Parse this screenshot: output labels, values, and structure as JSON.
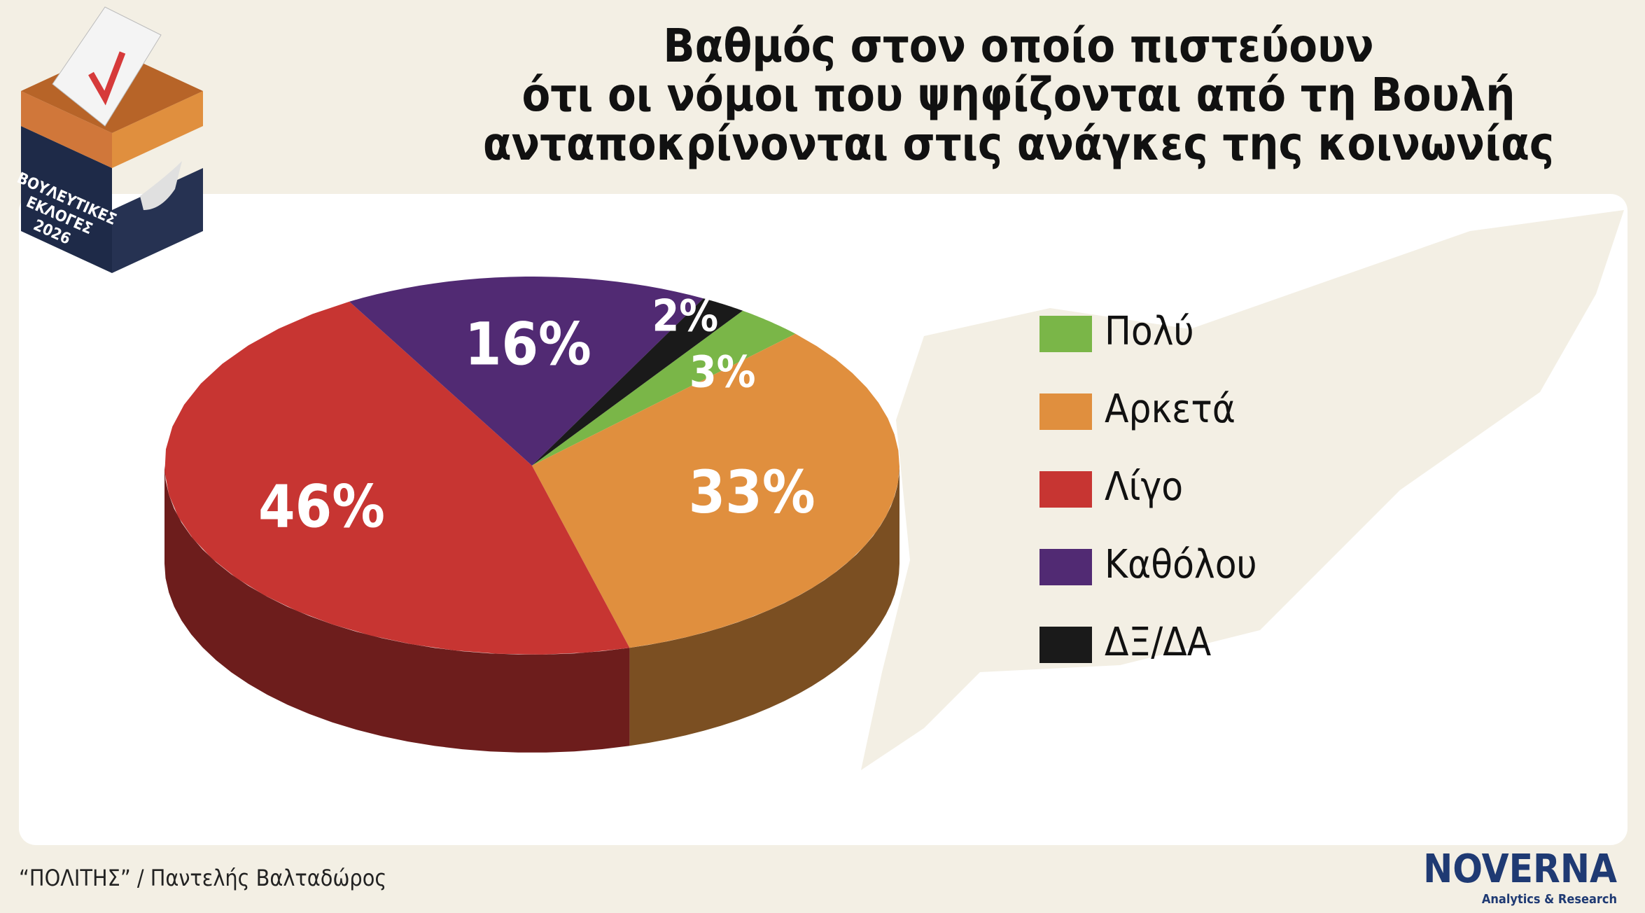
{
  "chart_data": {
    "type": "pie",
    "title_lines": [
      "Βαθμός στον οποίο πιστεύουν",
      "ότι οι νόμοι που ψηφίζονται από τη Βουλή",
      "ανταποκρίνονται στις ανάγκες της κοινωνίας"
    ],
    "categories": [
      "Πολύ",
      "Αρκετά",
      "Λίγο",
      "Καθόλου",
      "ΔΞ/ΔΑ"
    ],
    "values": [
      3,
      33,
      46,
      16,
      2
    ],
    "value_labels": [
      "3%",
      "33%",
      "46%",
      "16%",
      "2%"
    ],
    "colors": [
      "#7ab648",
      "#e08f3e",
      "#c73532",
      "#512a73",
      "#1a1a1a"
    ],
    "legend": "right"
  },
  "badge": {
    "lines": [
      "ΒΟΥΛΕΥΤΙΚΕΣ",
      "ΕΚΛΟΓΕΣ",
      "2026"
    ]
  },
  "footer": {
    "source": "“ΠΟΛΙΤΗΣ” / Παντελής Βαλταδώρος",
    "logo": "NOVERNA",
    "logo_tagline": "Analytics & Research"
  }
}
